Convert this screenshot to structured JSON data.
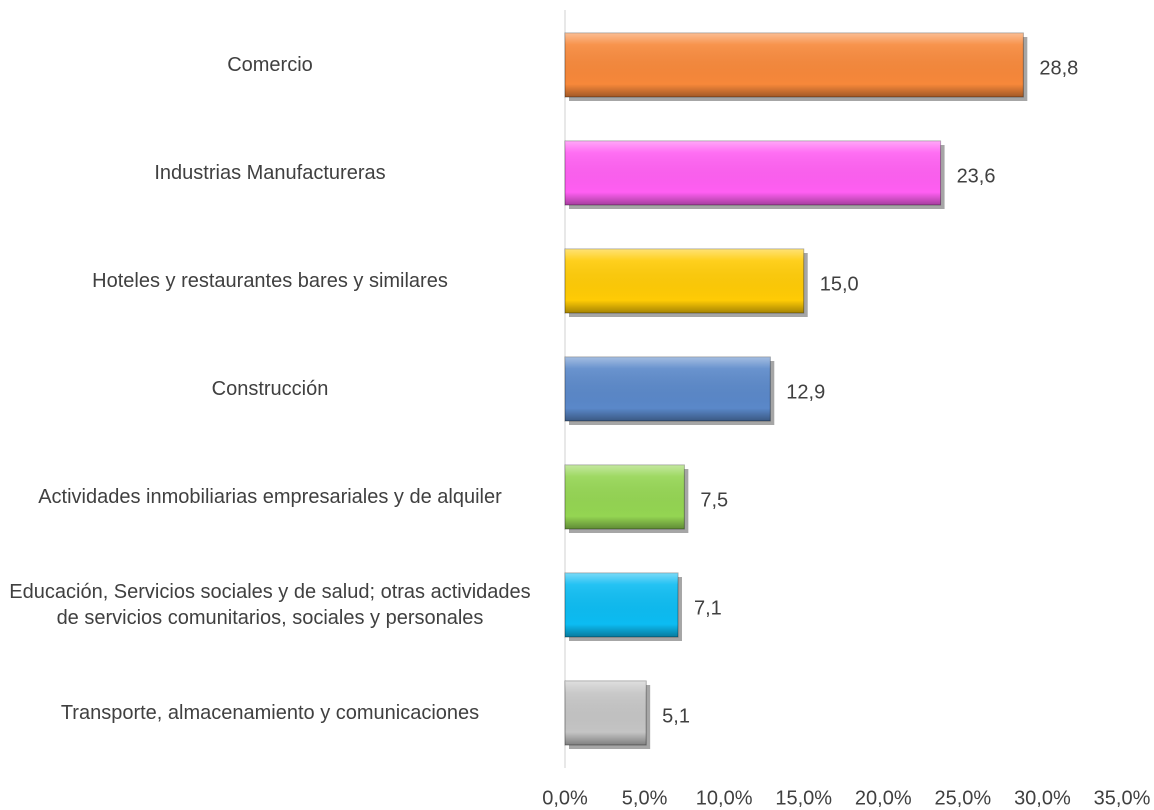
{
  "chart_data": {
    "type": "hbar",
    "categories": [
      "Comercio",
      "Industrias Manufactureras",
      "Hoteles y restaurantes bares y similares",
      "Construcción",
      "Actividades inmobiliarias empresariales y de alquiler",
      "Educación, Servicios sociales y de salud; otras actividades de servicios comunitarios, sociales y personales",
      "Transporte, almacenamiento y comunicaciones"
    ],
    "values": [
      28.8,
      23.6,
      15.0,
      12.9,
      7.5,
      7.1,
      5.1
    ],
    "value_labels": [
      "28,8",
      "23,6",
      "15,0",
      "12,9",
      "7,5",
      "7,1",
      "5,1"
    ],
    "colors": [
      "#f7883a",
      "#ff5ff2",
      "#ffcb05",
      "#5a88c9",
      "#94d552",
      "#0cbcf2",
      "#c4c4c4"
    ],
    "xlim": [
      0,
      35
    ],
    "xticks": [
      {
        "value": 0,
        "label": "0,0%"
      },
      {
        "value": 5,
        "label": "5,0%"
      },
      {
        "value": 10,
        "label": "10,0%"
      },
      {
        "value": 15,
        "label": "15,0%"
      },
      {
        "value": 20,
        "label": "20,0%"
      },
      {
        "value": 25,
        "label": "25,0%"
      },
      {
        "value": 30,
        "label": "30,0%"
      },
      {
        "value": 35,
        "label": "35,0%"
      }
    ]
  }
}
